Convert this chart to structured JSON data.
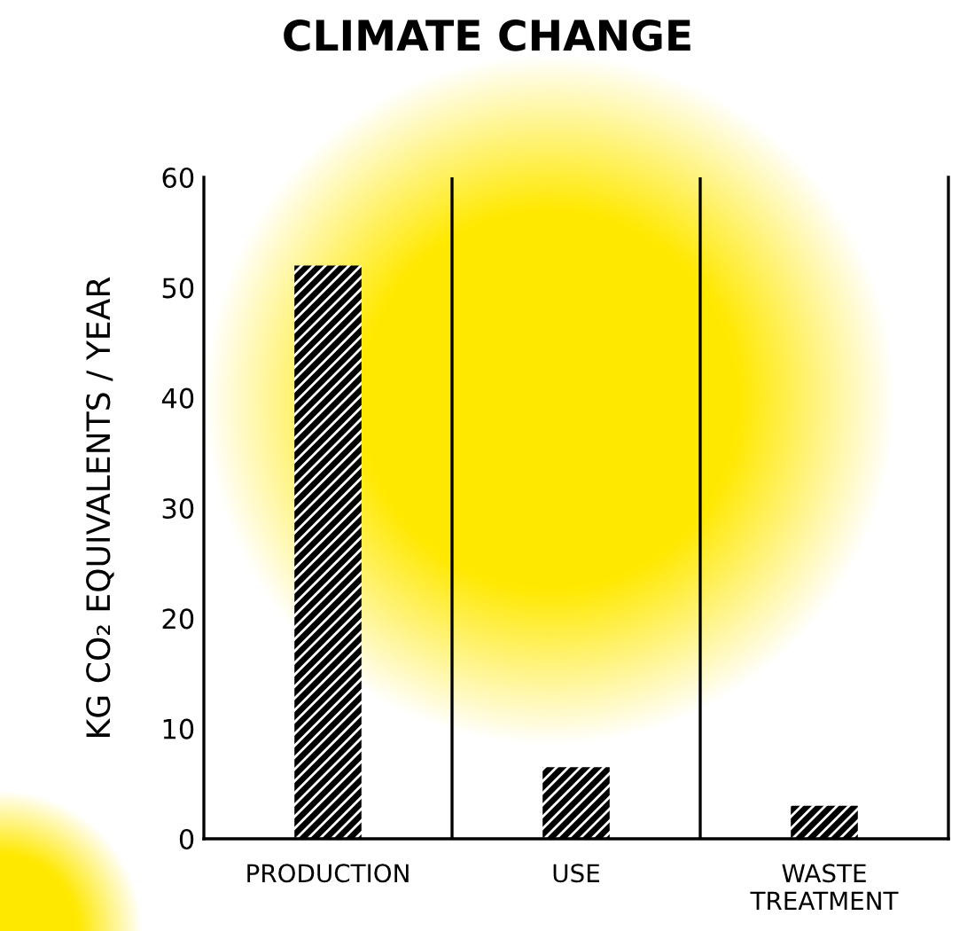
{
  "chart_data": {
    "type": "bar",
    "title": "CLIMATE CHANGE",
    "ylabel": "KG CO₂ EQUIVALENTS / YEAR",
    "categories": [
      "PRODUCTION",
      "USE",
      "WASTE TREATMENT"
    ],
    "values": [
      52,
      6.5,
      3
    ],
    "color": "#000000",
    "ylim": [
      0,
      60
    ],
    "yticks": [
      0,
      10,
      20,
      30,
      40,
      50,
      60
    ],
    "grid": false
  }
}
